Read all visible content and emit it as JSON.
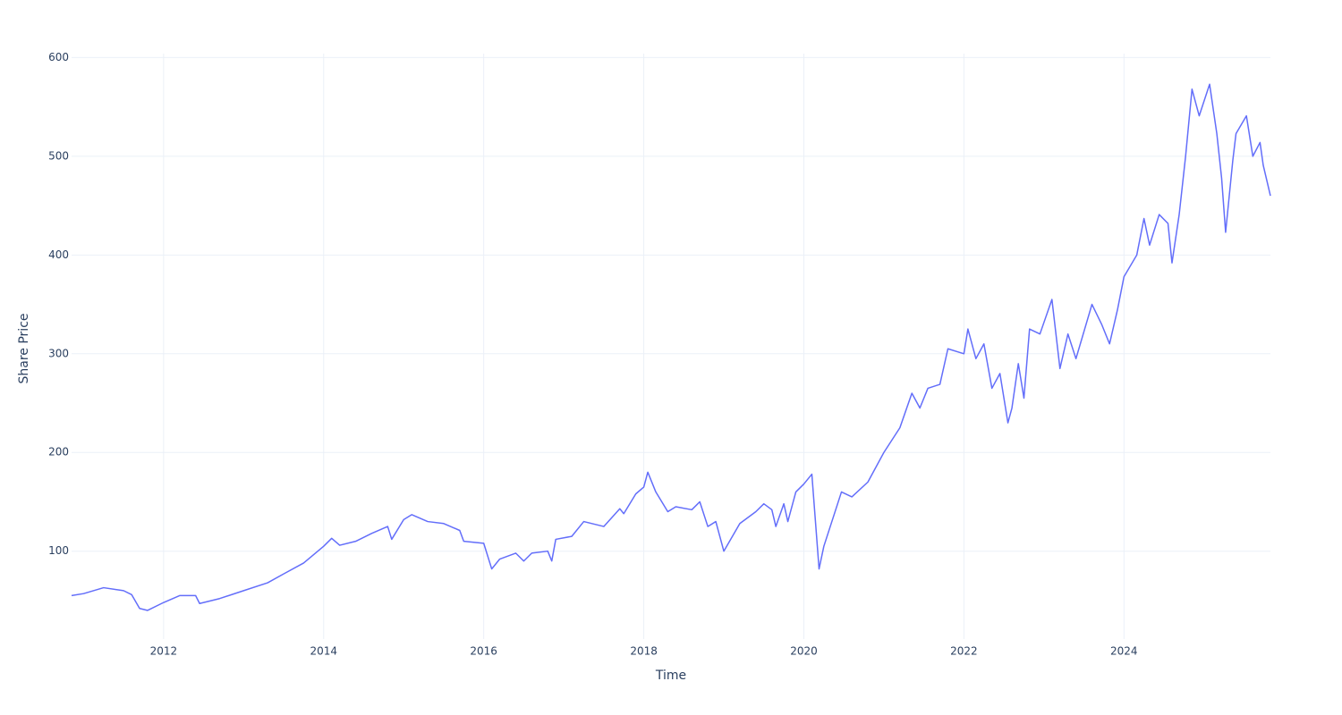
{
  "chart_data": {
    "type": "line",
    "x_title": "Time",
    "y_title": "Share Price",
    "x": [
      2010.85,
      2011.0,
      2011.25,
      2011.5,
      2011.6,
      2011.7,
      2011.8,
      2012.0,
      2012.2,
      2012.4,
      2012.45,
      2012.7,
      2013.0,
      2013.3,
      2013.5,
      2013.75,
      2014.0,
      2014.1,
      2014.2,
      2014.4,
      2014.6,
      2014.8,
      2014.85,
      2015.0,
      2015.1,
      2015.3,
      2015.5,
      2015.7,
      2015.75,
      2016.0,
      2016.1,
      2016.2,
      2016.4,
      2016.5,
      2016.6,
      2016.8,
      2016.85,
      2016.9,
      2017.1,
      2017.25,
      2017.5,
      2017.7,
      2017.75,
      2017.9,
      2018.0,
      2018.05,
      2018.15,
      2018.3,
      2018.4,
      2018.6,
      2018.7,
      2018.8,
      2018.9,
      2019.0,
      2019.2,
      2019.4,
      2019.5,
      2019.6,
      2019.65,
      2019.75,
      2019.8,
      2019.9,
      2020.0,
      2020.1,
      2020.19,
      2020.25,
      2020.47,
      2020.6,
      2020.8,
      2021.0,
      2021.2,
      2021.35,
      2021.45,
      2021.55,
      2021.7,
      2021.8,
      2022.0,
      2022.05,
      2022.15,
      2022.25,
      2022.35,
      2022.45,
      2022.55,
      2022.6,
      2022.68,
      2022.75,
      2022.82,
      2022.95,
      2023.1,
      2023.2,
      2023.3,
      2023.4,
      2023.6,
      2023.72,
      2023.82,
      2023.92,
      2024.0,
      2024.16,
      2024.25,
      2024.32,
      2024.44,
      2024.55,
      2024.6,
      2024.69,
      2024.77,
      2024.85,
      2024.94,
      2025.07,
      2025.16,
      2025.22,
      2025.27,
      2025.36,
      2025.4,
      2025.53,
      2025.61,
      2025.7,
      2025.74,
      2025.83
    ],
    "series": [
      {
        "name": "Share Price",
        "color": "#636efa",
        "values": [
          55,
          57,
          63,
          60,
          56,
          42,
          40,
          48,
          55,
          55,
          47,
          52,
          60,
          68,
          77,
          88,
          105,
          113,
          106,
          110,
          118,
          125,
          112,
          132,
          137,
          130,
          128,
          121,
          110,
          108,
          82,
          92,
          98,
          90,
          98,
          100,
          90,
          112,
          115,
          130,
          125,
          143,
          138,
          158,
          165,
          180,
          160,
          140,
          145,
          142,
          150,
          125,
          130,
          100,
          128,
          140,
          148,
          142,
          125,
          148,
          130,
          160,
          168,
          178,
          82,
          105,
          160,
          155,
          170,
          200,
          225,
          260,
          245,
          265,
          269,
          305,
          300,
          325,
          295,
          310,
          265,
          280,
          230,
          245,
          290,
          255,
          325,
          320,
          355,
          285,
          320,
          295,
          350,
          330,
          310,
          345,
          378,
          400,
          437,
          410,
          441,
          432,
          392,
          441,
          500,
          568,
          541,
          573,
          523,
          478,
          423,
          496,
          523,
          541,
          500,
          514,
          491,
          460
        ]
      }
    ],
    "xlim": [
      2010.85,
      2025.83
    ],
    "xticks": [
      2012,
      2014,
      2016,
      2018,
      2020,
      2022,
      2024
    ],
    "ylim": [
      11,
      604
    ],
    "yticks": [
      100,
      200,
      300,
      400,
      500,
      600
    ],
    "grid": true
  }
}
